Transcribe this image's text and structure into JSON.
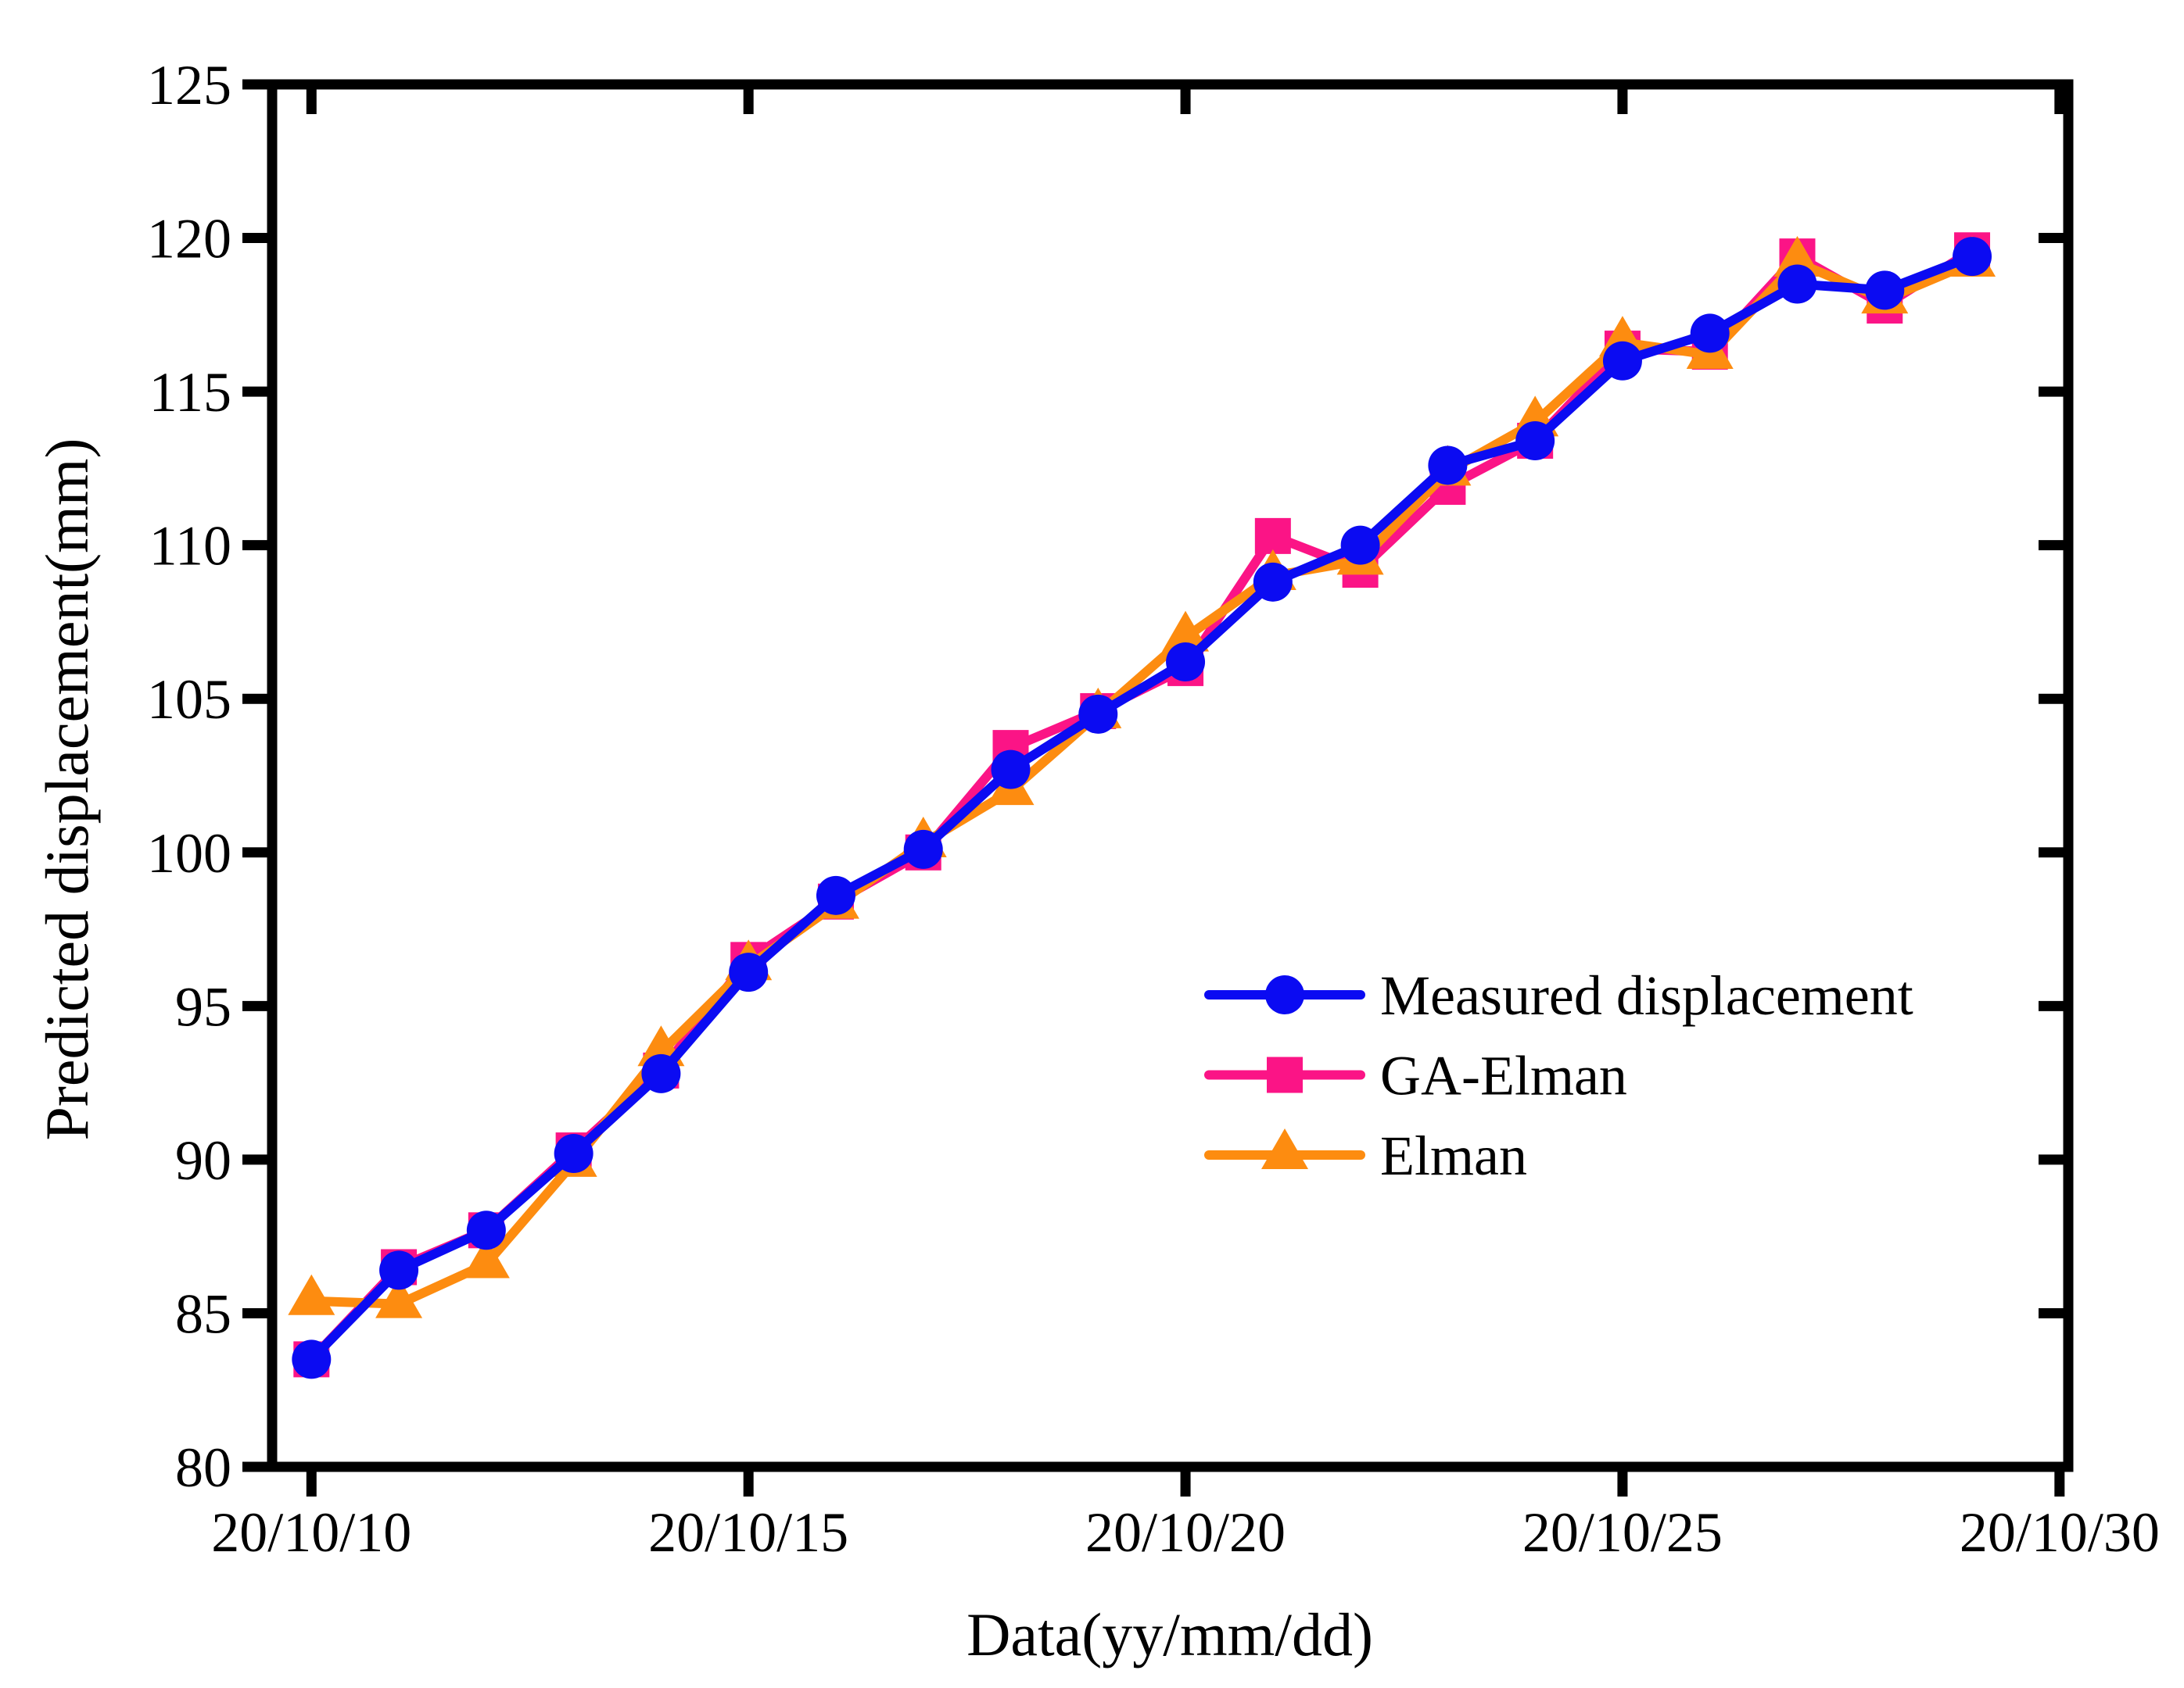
{
  "figure": {
    "background": "#ffffff",
    "axis_color": "#000000",
    "axis_line_width": 13,
    "tick_length": 38
  },
  "axes": {
    "x": {
      "title": "Data(yy/mm/dd)",
      "tick_values": [
        10,
        15,
        20,
        25,
        30
      ],
      "tick_labels": [
        "20/10/10",
        "20/10/15",
        "20/10/20",
        "20/10/25",
        "20/10/30"
      ]
    },
    "y": {
      "title": "Predicted displacement(mm)",
      "tick_values": [
        80,
        85,
        90,
        95,
        100,
        105,
        110,
        115,
        120,
        125
      ],
      "tick_labels": [
        "80",
        "85",
        "90",
        "95",
        "100",
        "105",
        "110",
        "115",
        "120",
        "125"
      ]
    }
  },
  "legend": {
    "position": "lower-right-inside",
    "items": [
      {
        "label": "Measured displacement",
        "marker": "circle",
        "color": "#0b0bf2"
      },
      {
        "label": "GA-Elman",
        "marker": "square",
        "color": "#fb1486"
      },
      {
        "label": "Elman",
        "marker": "triangle",
        "color": "#fd8c10"
      }
    ]
  },
  "chart_data": {
    "type": "line",
    "title": "",
    "xlabel": "Data(yy/mm/dd)",
    "ylabel": "Predicted displacement(mm)",
    "xlim": [
      9.55,
      30.1
    ],
    "ylim": [
      80,
      125
    ],
    "grid": false,
    "x_days": [
      10,
      11,
      12,
      13,
      14,
      15,
      16,
      17,
      18,
      19,
      20,
      21,
      22,
      23,
      24,
      25,
      26,
      27,
      28,
      29
    ],
    "x_dates": [
      "20/10/10",
      "20/10/11",
      "20/10/12",
      "20/10/13",
      "20/10/14",
      "20/10/15",
      "20/10/16",
      "20/10/17",
      "20/10/18",
      "20/10/19",
      "20/10/20",
      "20/10/21",
      "20/10/22",
      "20/10/23",
      "20/10/24",
      "20/10/25",
      "20/10/26",
      "20/10/27",
      "20/10/28",
      "20/10/29"
    ],
    "series": [
      {
        "name": "Measured displacement",
        "color": "#0b0bf2",
        "marker": "circle",
        "z": 3,
        "values": [
          83.5,
          86.4,
          87.7,
          90.2,
          92.8,
          96.1,
          98.6,
          100.1,
          102.7,
          104.5,
          106.2,
          108.8,
          110.0,
          112.6,
          113.4,
          116.0,
          116.9,
          118.5,
          118.3,
          119.4
        ]
      },
      {
        "name": "GA-Elman",
        "color": "#fb1486",
        "marker": "square",
        "z": 1,
        "values": [
          83.5,
          86.5,
          87.7,
          90.3,
          92.9,
          96.5,
          98.4,
          100.0,
          103.4,
          104.6,
          106.0,
          110.3,
          109.2,
          111.9,
          113.4,
          116.4,
          116.3,
          119.4,
          117.8,
          119.6
        ]
      },
      {
        "name": "Elman",
        "color": "#fd8c10",
        "marker": "triangle",
        "z": 2,
        "values": [
          85.4,
          85.3,
          86.6,
          89.9,
          93.5,
          96.3,
          98.3,
          100.3,
          102.0,
          104.5,
          107.0,
          109.0,
          109.5,
          112.4,
          114.0,
          116.6,
          116.2,
          119.2,
          118.0,
          119.2
        ]
      }
    ]
  }
}
